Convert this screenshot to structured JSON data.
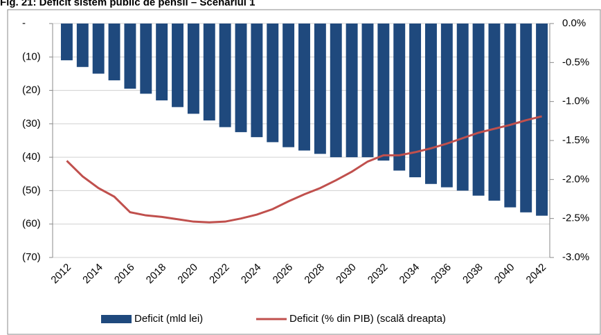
{
  "chart_data": {
    "type": "bar-line",
    "title": "Fig. 21: Deficit sistem public de pensii – Scenariul 1",
    "categories": [
      "2012",
      null,
      "2014",
      null,
      "2016",
      null,
      "2018",
      null,
      "2020",
      null,
      "2022",
      null,
      "2024",
      null,
      "2026",
      null,
      "2028",
      null,
      "2030",
      null,
      "2032",
      null,
      "2034",
      null,
      "2036",
      null,
      "2038",
      null,
      "2040",
      null,
      "2042"
    ],
    "series": [
      {
        "name": "Deficit (mld lei)",
        "color": "#1f497d",
        "type": "bar",
        "values": [
          -11,
          -13,
          -15,
          -17,
          -19.5,
          -21,
          -23,
          -25,
          -27,
          -29,
          -31,
          -32.5,
          -34,
          -35.5,
          -37,
          -38,
          -39,
          -40,
          -40,
          -40,
          -41,
          -44,
          -46,
          -48,
          -49,
          -50,
          -51.5,
          -53,
          -55,
          -56.5,
          -57.5
        ]
      },
      {
        "name": "Deficit (% din PIB) (scală dreapta)",
        "color": "#c0504d",
        "type": "line",
        "axis": "y2",
        "values": [
          -1.76,
          -1.96,
          -2.11,
          -2.22,
          -2.42,
          -2.46,
          -2.48,
          -2.51,
          -2.54,
          -2.55,
          -2.54,
          -2.5,
          -2.45,
          -2.38,
          -2.28,
          -2.19,
          -2.11,
          -2.01,
          -1.9,
          -1.77,
          -1.69,
          -1.69,
          -1.65,
          -1.6,
          -1.54,
          -1.47,
          -1.4,
          -1.35,
          -1.3,
          -1.24,
          -1.19
        ]
      }
    ],
    "ylim": [
      -70,
      0
    ],
    "yticks": [
      {
        "value": 0,
        "label": "-"
      },
      {
        "value": -10,
        "label": "(10)"
      },
      {
        "value": -20,
        "label": "(20)"
      },
      {
        "value": -30,
        "label": "(30)"
      },
      {
        "value": -40,
        "label": "(40)"
      },
      {
        "value": -50,
        "label": "(50)"
      },
      {
        "value": -60,
        "label": "(60)"
      },
      {
        "value": -70,
        "label": "(70)"
      }
    ],
    "y2lim": [
      -3.0,
      0
    ],
    "y2ticks": [
      {
        "value": 0,
        "label": "0.0%"
      },
      {
        "value": -0.5,
        "label": "-0.5%"
      },
      {
        "value": -1.0,
        "label": "-1.0%"
      },
      {
        "value": -1.5,
        "label": "-1.5%"
      },
      {
        "value": -2.0,
        "label": "-2.0%"
      },
      {
        "value": -2.5,
        "label": "-2.5%"
      },
      {
        "value": -3.0,
        "label": "-3.0%"
      }
    ],
    "grid": true,
    "legend": "bottom"
  }
}
